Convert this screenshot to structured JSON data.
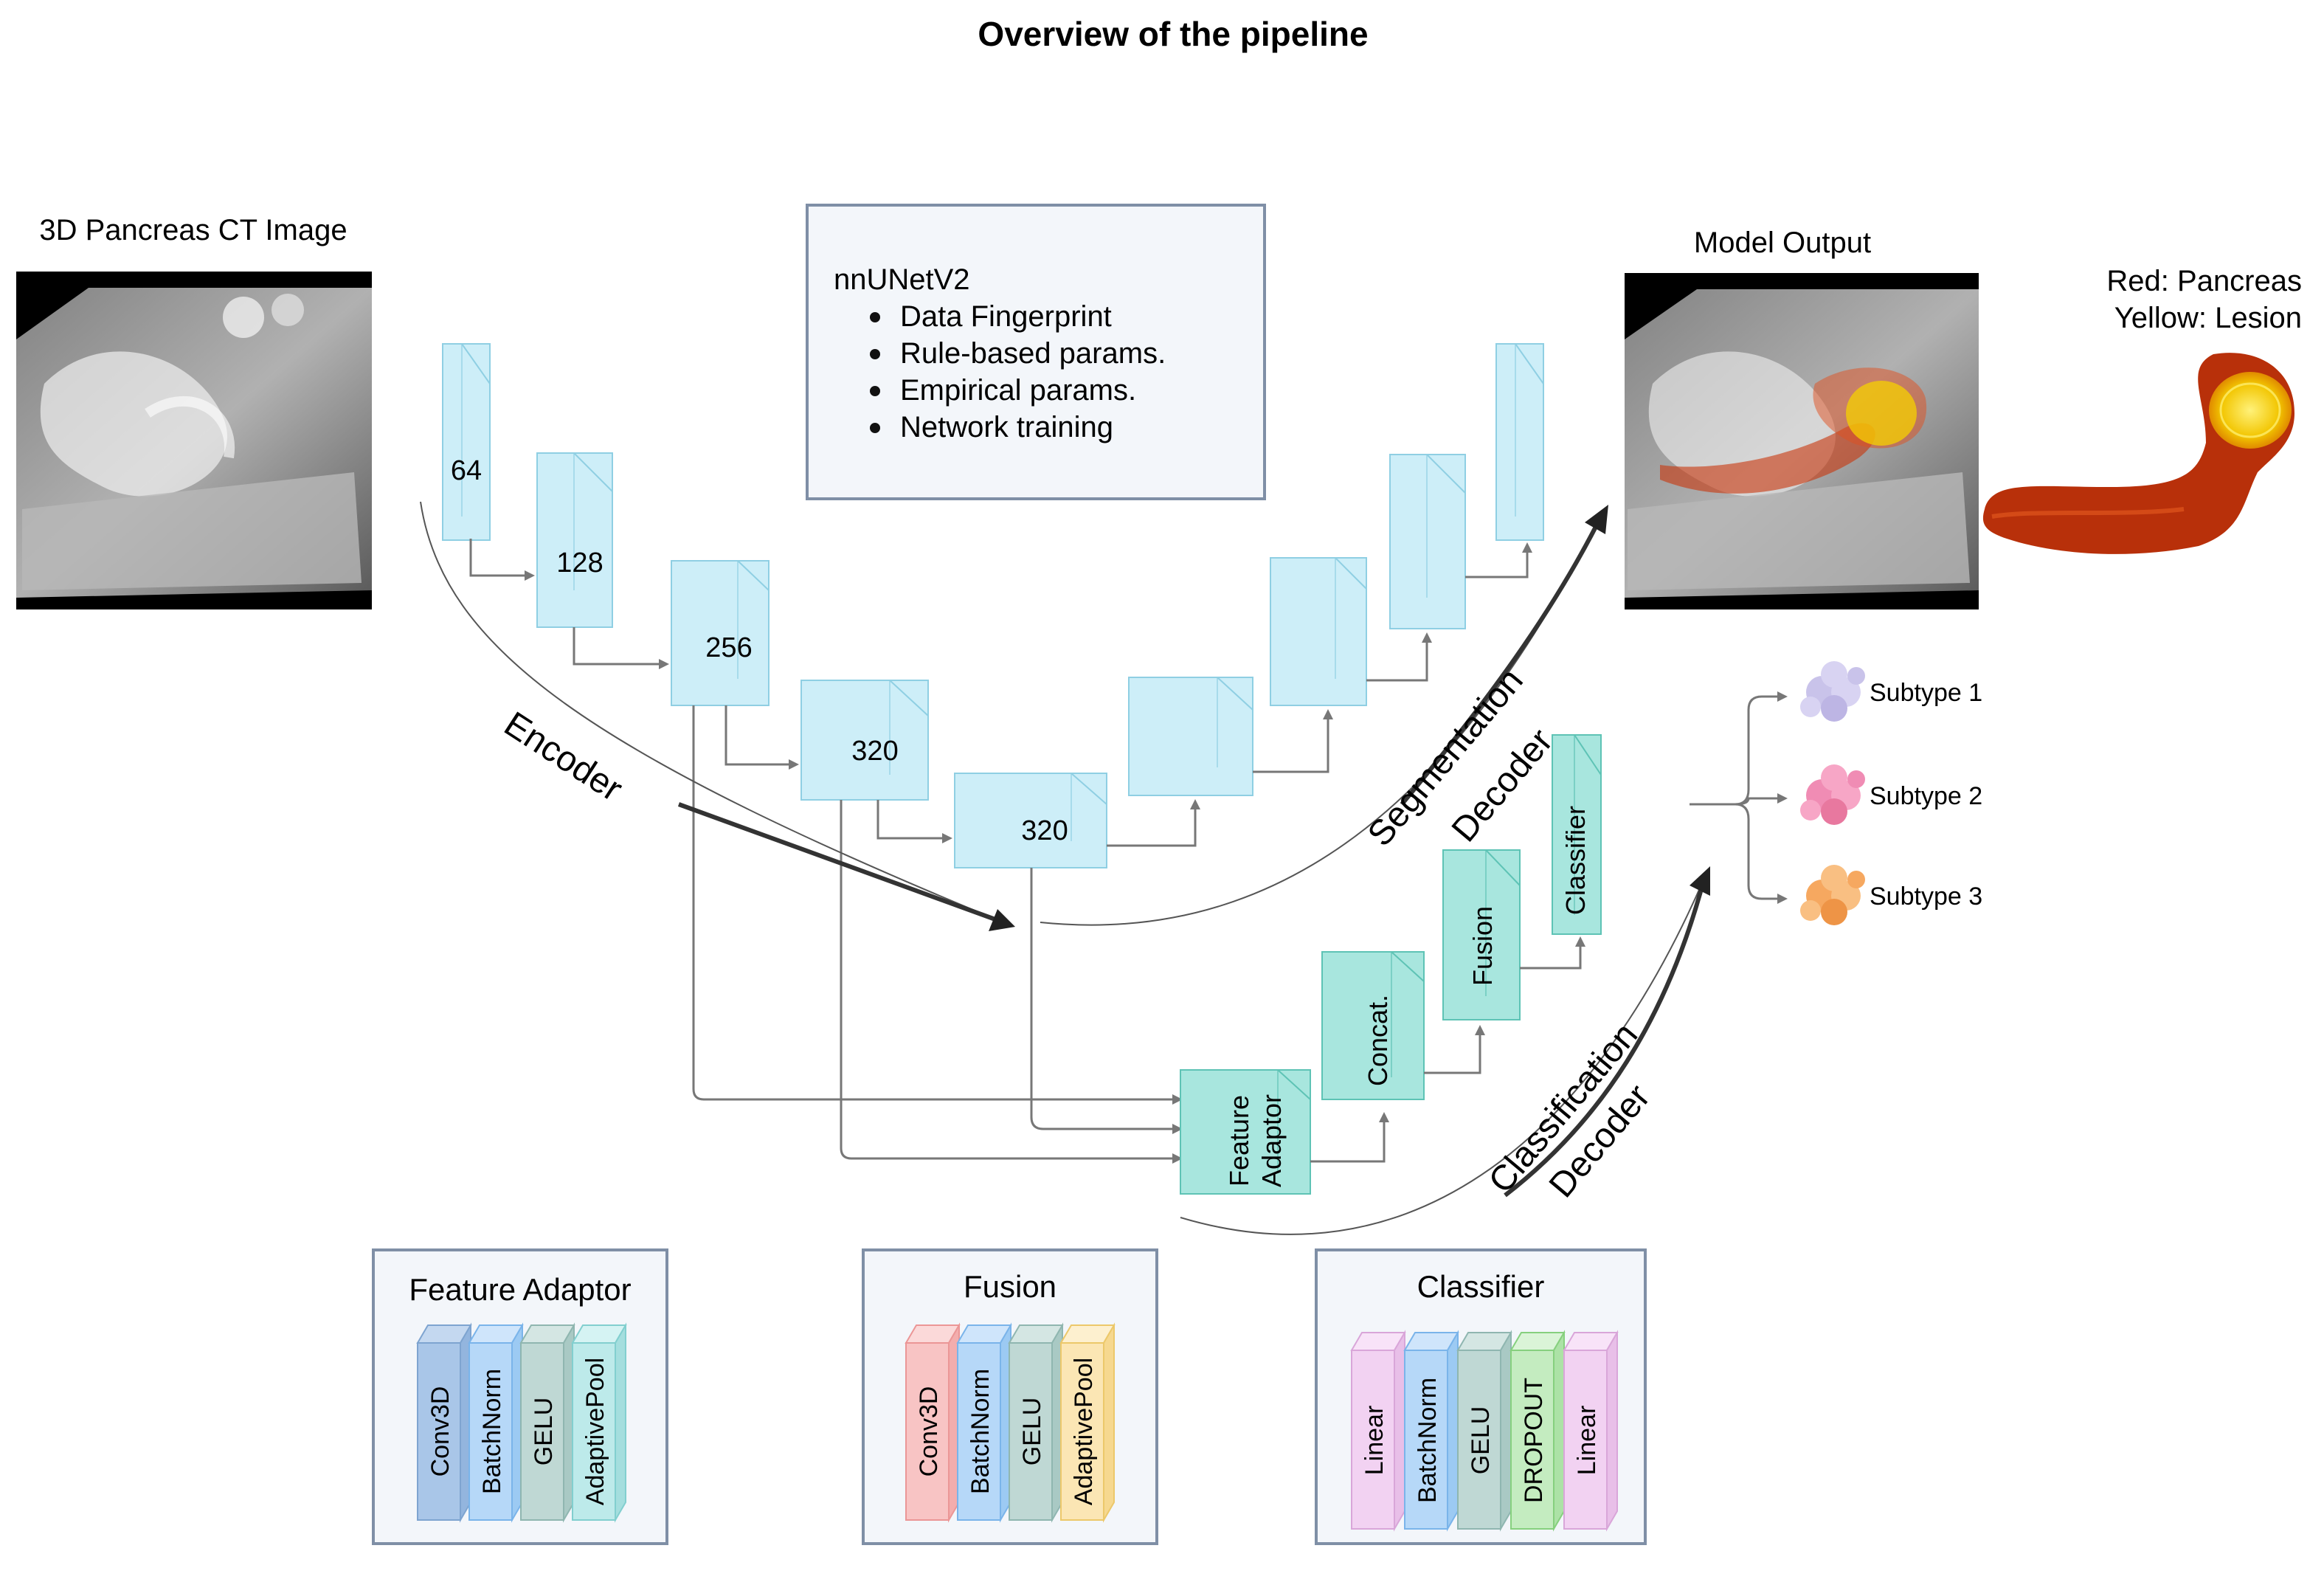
{
  "title": "Overview of the pipeline",
  "input_image": {
    "label": "3D Pancreas CT Image"
  },
  "output_image": {
    "label": "Model Output"
  },
  "output_legend": {
    "red": "Red: Pancreas",
    "yellow": "Yellow: Lesion"
  },
  "nnunet_box": {
    "heading": "nnUNetV2",
    "items": [
      "Data Fingerprint",
      "Rule-based params.",
      "Empirical params.",
      "Network training"
    ]
  },
  "encoder_blocks": [
    "64",
    "128",
    "256",
    "320",
    "320"
  ],
  "labels": {
    "encoder": "Encoder",
    "seg_decoder_1": "Segmentation",
    "seg_decoder_2": "Decoder",
    "cls_decoder_1": "Classification",
    "cls_decoder_2": "Decoder"
  },
  "cls_blocks": {
    "feature_adaptor_1": "Feature",
    "feature_adaptor_2": "Adaptor",
    "concat": "Concat.",
    "fusion": "Fusion",
    "classifier": "Classifier"
  },
  "subtypes": [
    "Subtype 1",
    "Subtype 2",
    "Subtype 3"
  ],
  "detail_boxes": [
    {
      "title": "Feature Adaptor",
      "layers": [
        "Conv3D",
        "BatchNorm",
        "GELU",
        "AdaptivePool"
      ]
    },
    {
      "title": "Fusion",
      "layers": [
        "Conv3D",
        "BatchNorm",
        "GELU",
        "AdaptivePool"
      ]
    },
    {
      "title": "Classifier",
      "layers": [
        "Linear",
        "BatchNorm",
        "GELU",
        "DROPOUT",
        "Linear"
      ]
    }
  ],
  "colors": {
    "unet_block": "#cdeef8",
    "cls_block": "#a8e6de",
    "box_border": "#7f8fa6",
    "box_fill": "#f3f6fa",
    "pancreas": "#c8360c",
    "lesion": "#f5d000",
    "subtype1": "#c9c3ea",
    "subtype2": "#f08cb4",
    "subtype3": "#f6a860"
  }
}
